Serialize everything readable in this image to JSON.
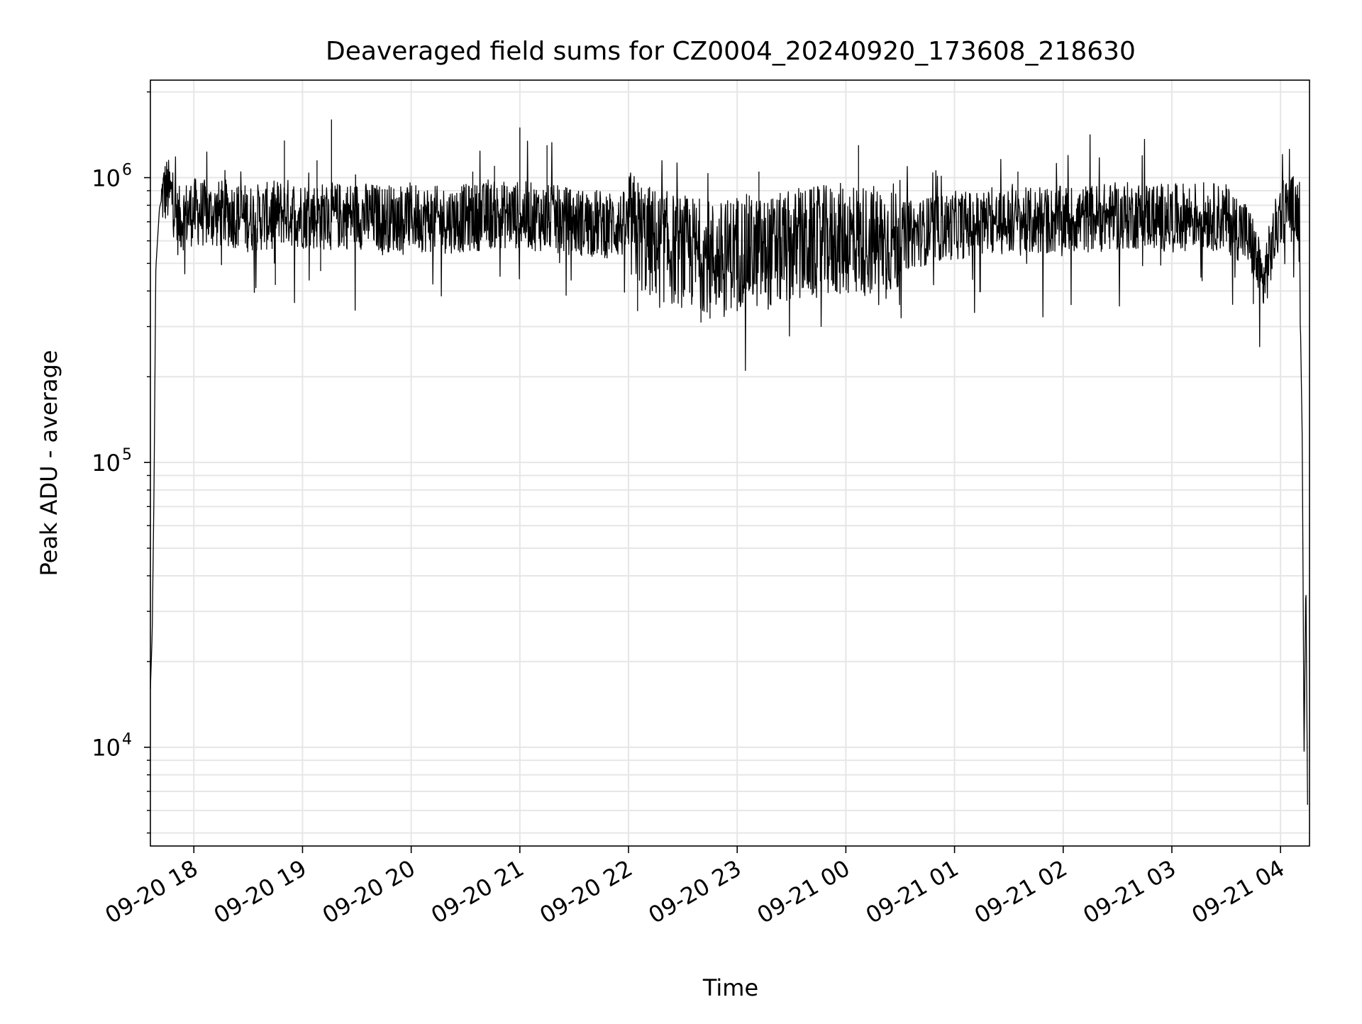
{
  "chart_data": {
    "type": "line",
    "title": "Deaveraged field sums for CZ0004_20240920_173608_218630",
    "xlabel": "Time",
    "ylabel": "Peak ADU - average",
    "yscale": "log",
    "ylim": [
      4500,
      2200000
    ],
    "xlim": [
      "2024-09-20 17:36",
      "2024-09-21 04:16"
    ],
    "grid": true,
    "x_ticks": [
      {
        "t": "2024-09-20 18:00",
        "label": "09-20 18"
      },
      {
        "t": "2024-09-20 19:00",
        "label": "09-20 19"
      },
      {
        "t": "2024-09-20 20:00",
        "label": "09-20 20"
      },
      {
        "t": "2024-09-20 21:00",
        "label": "09-20 21"
      },
      {
        "t": "2024-09-20 22:00",
        "label": "09-20 22"
      },
      {
        "t": "2024-09-20 23:00",
        "label": "09-20 23"
      },
      {
        "t": "2024-09-21 00:00",
        "label": "09-21 00"
      },
      {
        "t": "2024-09-21 01:00",
        "label": "09-21 01"
      },
      {
        "t": "2024-09-21 02:00",
        "label": "09-21 02"
      },
      {
        "t": "2024-09-21 03:00",
        "label": "09-21 03"
      },
      {
        "t": "2024-09-21 04:00",
        "label": "09-21 04"
      }
    ],
    "y_ticks": [
      {
        "value": 10000,
        "base": "10",
        "exp": "4"
      },
      {
        "value": 100000,
        "base": "10",
        "exp": "5"
      },
      {
        "value": 1000000,
        "base": "10",
        "exp": "6"
      }
    ],
    "line_color": "#000000",
    "series": [
      {
        "x": [
          "2024-09-20 17:36",
          "2024-09-20 17:37",
          "2024-09-20 17:38",
          "2024-09-20 17:39",
          "2024-09-20 17:41",
          "2024-09-20 17:43",
          "2024-09-20 17:45",
          "2024-09-20 17:48",
          "2024-09-20 17:51",
          "2024-09-20 17:55",
          "2024-09-20 18:00",
          "2024-09-20 18:10",
          "2024-09-20 18:20",
          "2024-09-20 18:30",
          "2024-09-20 18:40",
          "2024-09-20 18:50",
          "2024-09-20 19:00",
          "2024-09-20 19:15",
          "2024-09-20 19:30",
          "2024-09-20 19:45",
          "2024-09-20 20:00",
          "2024-09-20 20:15",
          "2024-09-20 20:30",
          "2024-09-20 20:45",
          "2024-09-20 21:00",
          "2024-09-20 21:15",
          "2024-09-20 21:30",
          "2024-09-20 21:45",
          "2024-09-20 22:00",
          "2024-09-20 22:10",
          "2024-09-20 22:20",
          "2024-09-20 22:30",
          "2024-09-20 22:40",
          "2024-09-20 22:50",
          "2024-09-20 23:00",
          "2024-09-20 23:15",
          "2024-09-20 23:30",
          "2024-09-20 23:45",
          "2024-09-21 00:00",
          "2024-09-21 00:15",
          "2024-09-21 00:30",
          "2024-09-21 00:45",
          "2024-09-21 01:00",
          "2024-09-21 01:15",
          "2024-09-21 01:30",
          "2024-09-21 01:45",
          "2024-09-21 02:00",
          "2024-09-21 02:15",
          "2024-09-21 02:30",
          "2024-09-21 02:45",
          "2024-09-21 03:00",
          "2024-09-21 03:15",
          "2024-09-21 03:30",
          "2024-09-21 03:40",
          "2024-09-21 03:45",
          "2024-09-21 03:50",
          "2024-09-21 03:55",
          "2024-09-21 04:00",
          "2024-09-21 04:05",
          "2024-09-21 04:08",
          "2024-09-21 04:10",
          "2024-09-21 04:12",
          "2024-09-21 04:13",
          "2024-09-21 04:14",
          "2024-09-21 04:15"
        ],
        "y": [
          16000,
          25000,
          80000,
          480000,
          780000,
          880000,
          900000,
          860000,
          700000,
          740000,
          760000,
          740000,
          750000,
          720000,
          730000,
          760000,
          740000,
          730000,
          740000,
          720000,
          730000,
          710000,
          720000,
          740000,
          740000,
          720000,
          700000,
          690000,
          680000,
          600000,
          570000,
          550000,
          540000,
          520000,
          560000,
          540000,
          570000,
          590000,
          610000,
          600000,
          620000,
          650000,
          680000,
          690000,
          700000,
          700000,
          710000,
          720000,
          730000,
          740000,
          720000,
          740000,
          720000,
          650000,
          560000,
          420000,
          560000,
          760000,
          790000,
          770000,
          780000,
          120000,
          9500,
          40000,
          5500
        ]
      }
    ],
    "spikes": [
      {
        "x": "2024-09-20 18:50",
        "y": 1350000
      },
      {
        "x": "2024-09-20 19:16",
        "y": 1600000
      },
      {
        "x": "2024-09-20 19:08",
        "y": 1150000
      },
      {
        "x": "2024-09-20 20:34",
        "y": 1050000
      },
      {
        "x": "2024-09-20 20:46",
        "y": 1100000
      },
      {
        "x": "2024-09-20 21:00",
        "y": 1500000
      },
      {
        "x": "2024-09-20 21:15",
        "y": 1300000
      },
      {
        "x": "2024-09-21 00:07",
        "y": 1300000
      },
      {
        "x": "2024-09-20 23:12",
        "y": 1050000
      },
      {
        "x": "2024-09-21 01:35",
        "y": 1050000
      },
      {
        "x": "2024-09-20 18:45",
        "y": 420000
      },
      {
        "x": "2024-09-20 19:10",
        "y": 470000
      },
      {
        "x": "2024-09-20 22:05",
        "y": 340000
      },
      {
        "x": "2024-09-20 22:40",
        "y": 310000
      },
      {
        "x": "2024-09-20 22:45",
        "y": 320000
      },
      {
        "x": "2024-09-20 23:00",
        "y": 340000
      },
      {
        "x": "2024-09-21 03:45",
        "y": 360000
      }
    ]
  }
}
